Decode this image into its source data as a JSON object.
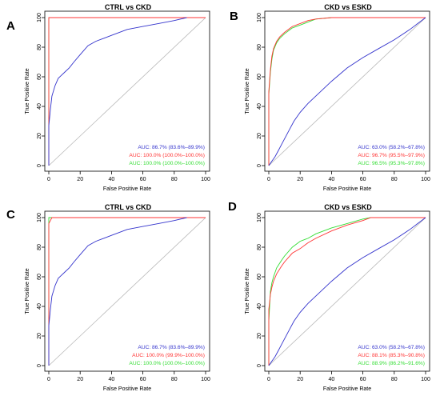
{
  "panels": [
    {
      "label": "A",
      "title": "CTRL vs CKD"
    },
    {
      "label": "B",
      "title": "CKD vs ESKD"
    },
    {
      "label": "C",
      "title": "CTRL vs CKD"
    },
    {
      "label": "D",
      "title": "CKD vs ESKD"
    }
  ],
  "chart_data": [
    {
      "type": "line",
      "title": "CTRL vs CKD",
      "xlabel": "False Positive Rate",
      "ylabel": "True Positive Rate",
      "xlim": [
        0,
        100
      ],
      "ylim": [
        0,
        100
      ],
      "xticks": [
        "0",
        "20",
        "40",
        "60",
        "80",
        "100"
      ],
      "yticks": [
        "0",
        "20",
        "40",
        "60",
        "80",
        "100"
      ],
      "grid": false,
      "legend_position": "bottom-right",
      "reference_line": "diagonal",
      "series": [
        {
          "name": "AUC: 86.7% (83.6%–89.9%)",
          "color": "#3333cc",
          "x": [
            0,
            0,
            1,
            2,
            4,
            6,
            8,
            10,
            13,
            16,
            20,
            25,
            30,
            35,
            40,
            50,
            60,
            70,
            80,
            88
          ],
          "y": [
            0,
            27,
            38,
            47,
            54,
            59,
            61,
            63,
            66,
            70,
            75,
            81,
            84,
            86,
            88,
            92,
            94,
            96,
            98,
            100
          ]
        },
        {
          "name": "AUC: 100.0% (100.0%–100.0%)",
          "color": "#ff3333",
          "x": [
            0,
            0,
            100
          ],
          "y": [
            0,
            100,
            100
          ]
        },
        {
          "name": "AUC: 100.0% (100.0%–100.0%)",
          "color": "#33dd33",
          "x": [
            0,
            0,
            100
          ],
          "y": [
            0,
            100,
            100
          ]
        }
      ]
    },
    {
      "type": "line",
      "title": "CKD vs ESKD",
      "xlabel": "False Positive Rate",
      "ylabel": "True Positive Rate",
      "xlim": [
        0,
        100
      ],
      "ylim": [
        0,
        100
      ],
      "xticks": [
        "0",
        "20",
        "40",
        "60",
        "80",
        "100"
      ],
      "yticks": [
        "0",
        "20",
        "40",
        "60",
        "80",
        "100"
      ],
      "grid": false,
      "legend_position": "bottom-right",
      "reference_line": "diagonal",
      "series": [
        {
          "name": "AUC: 63.0% (58.2%–67.8%)",
          "color": "#3333cc",
          "x": [
            0,
            2,
            4,
            6,
            8,
            10,
            13,
            16,
            20,
            25,
            30,
            35,
            40,
            50,
            60,
            70,
            80,
            90,
            95,
            100
          ],
          "y": [
            0,
            3,
            6,
            10,
            14,
            18,
            24,
            30,
            36,
            42,
            47,
            52,
            57,
            66,
            73,
            79,
            85,
            92,
            96,
            100
          ]
        },
        {
          "name": "AUC: 96.7% (95.5%–97.9%)",
          "color": "#ff3333",
          "x": [
            0,
            0,
            1,
            2,
            3,
            5,
            7,
            10,
            15,
            20,
            25,
            30,
            40,
            50,
            60,
            100
          ],
          "y": [
            0,
            50,
            65,
            74,
            79,
            84,
            87,
            90,
            94,
            96,
            98,
            99,
            100,
            100,
            100,
            100
          ]
        },
        {
          "name": "AUC: 96.5% (95.3%–97.8%)",
          "color": "#33dd33",
          "x": [
            0,
            0,
            1,
            2,
            3,
            5,
            7,
            10,
            15,
            20,
            25,
            30,
            40,
            50,
            60,
            100
          ],
          "y": [
            0,
            48,
            63,
            72,
            78,
            83,
            86,
            89,
            93,
            95,
            97,
            99,
            100,
            100,
            100,
            100
          ]
        }
      ]
    },
    {
      "type": "line",
      "title": "CTRL vs CKD",
      "xlabel": "False Positive Rate",
      "ylabel": "True Positive Rate",
      "xlim": [
        0,
        100
      ],
      "ylim": [
        0,
        100
      ],
      "xticks": [
        "0",
        "20",
        "40",
        "60",
        "80",
        "100"
      ],
      "yticks": [
        "0",
        "20",
        "40",
        "60",
        "80",
        "100"
      ],
      "grid": false,
      "legend_position": "bottom-right",
      "reference_line": "diagonal",
      "series": [
        {
          "name": "AUC: 86.7% (83.6%–89.9%)",
          "color": "#3333cc",
          "x": [
            0,
            0,
            1,
            2,
            4,
            6,
            8,
            10,
            13,
            16,
            20,
            25,
            30,
            35,
            40,
            50,
            60,
            70,
            80,
            88
          ],
          "y": [
            0,
            27,
            38,
            47,
            54,
            59,
            61,
            63,
            66,
            70,
            75,
            81,
            84,
            86,
            88,
            92,
            94,
            96,
            98,
            100
          ]
        },
        {
          "name": "AUC: 100.0% (99.9%–100.0%)",
          "color": "#ff3333",
          "x": [
            0,
            0,
            1,
            2,
            100
          ],
          "y": [
            0,
            96,
            98,
            100,
            100
          ]
        },
        {
          "name": "AUC: 100.0% (100.0%–100.0%)",
          "color": "#33dd33",
          "x": [
            0,
            0,
            100
          ],
          "y": [
            0,
            100,
            100
          ]
        }
      ]
    },
    {
      "type": "line",
      "title": "CKD vs ESKD",
      "xlabel": "False Positive Rate",
      "ylabel": "True Positive Rate",
      "xlim": [
        0,
        100
      ],
      "ylim": [
        0,
        100
      ],
      "xticks": [
        "0",
        "20",
        "40",
        "60",
        "80",
        "100"
      ],
      "yticks": [
        "0",
        "20",
        "40",
        "60",
        "80",
        "100"
      ],
      "grid": false,
      "legend_position": "bottom-right",
      "reference_line": "diagonal",
      "series": [
        {
          "name": "AUC: 63.0% (58.2%–67.8%)",
          "color": "#3333cc",
          "x": [
            0,
            2,
            4,
            6,
            8,
            10,
            13,
            16,
            20,
            25,
            30,
            35,
            40,
            50,
            60,
            70,
            80,
            90,
            95,
            100
          ],
          "y": [
            0,
            3,
            6,
            10,
            14,
            18,
            24,
            30,
            36,
            42,
            47,
            52,
            57,
            66,
            73,
            79,
            85,
            92,
            96,
            100
          ]
        },
        {
          "name": "AUC: 88.1% (85.3%–90.8%)",
          "color": "#ff3333",
          "x": [
            0,
            0,
            1,
            2,
            3,
            5,
            8,
            10,
            15,
            20,
            25,
            30,
            40,
            50,
            60,
            65,
            100
          ],
          "y": [
            0,
            38,
            48,
            53,
            57,
            62,
            67,
            70,
            76,
            79,
            83,
            86,
            91,
            95,
            98,
            100,
            100
          ]
        },
        {
          "name": "AUC: 88.9% (86.2%–91.6%)",
          "color": "#33dd33",
          "x": [
            0,
            0,
            1,
            2,
            3,
            5,
            8,
            10,
            15,
            20,
            25,
            30,
            40,
            50,
            60,
            65,
            100
          ],
          "y": [
            0,
            30,
            50,
            56,
            60,
            66,
            71,
            74,
            80,
            84,
            86,
            89,
            93,
            96,
            99,
            100,
            100
          ]
        }
      ]
    }
  ]
}
